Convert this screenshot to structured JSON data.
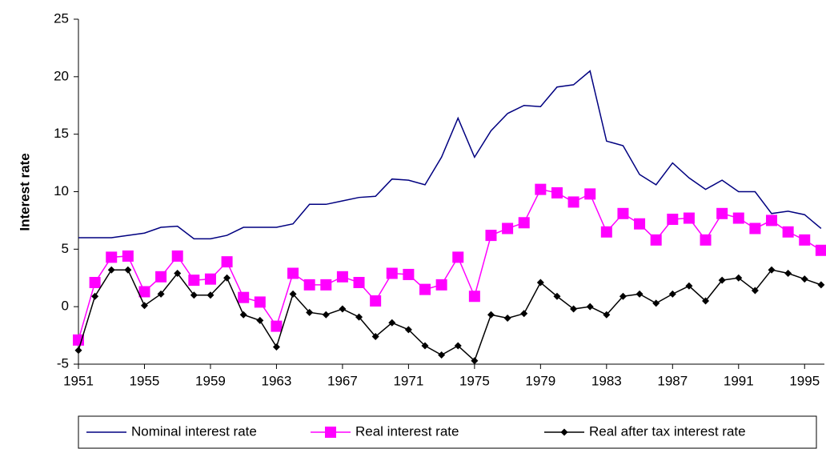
{
  "chart_data": {
    "type": "line",
    "y_label": "Interest rate",
    "x": [
      1951,
      1952,
      1953,
      1954,
      1955,
      1956,
      1957,
      1958,
      1959,
      1960,
      1961,
      1962,
      1963,
      1964,
      1965,
      1966,
      1967,
      1968,
      1969,
      1970,
      1971,
      1972,
      1973,
      1974,
      1975,
      1976,
      1977,
      1978,
      1979,
      1980,
      1981,
      1982,
      1983,
      1984,
      1985,
      1986,
      1987,
      1988,
      1989,
      1990,
      1991,
      1992,
      1993,
      1994,
      1995,
      1996
    ],
    "xlim": [
      1951,
      1996.2
    ],
    "xticks": [
      1951,
      1955,
      1959,
      1963,
      1967,
      1971,
      1975,
      1979,
      1983,
      1987,
      1991,
      1995
    ],
    "ylim": [
      -5,
      25
    ],
    "yticks": [
      -5,
      0,
      5,
      10,
      15,
      20,
      25
    ],
    "series": [
      {
        "name": "Nominal interest rate",
        "color": "#000080",
        "marker": "none",
        "values": [
          6,
          6,
          6,
          6.2,
          6.4,
          6.9,
          7.0,
          5.9,
          5.9,
          6.2,
          6.9,
          6.9,
          6.9,
          7.2,
          8.9,
          8.9,
          9.2,
          9.5,
          9.6,
          11.1,
          11.0,
          10.6,
          13.0,
          16.4,
          13.0,
          15.3,
          16.8,
          17.5,
          17.4,
          19.1,
          19.3,
          20.5,
          14.4,
          14.0,
          11.5,
          10.6,
          12.5,
          11.2,
          10.2,
          11.0,
          10.0,
          10.0,
          8.1,
          8.3,
          8.0,
          6.8
        ]
      },
      {
        "name": "Real interest rate",
        "color": "#ff00ff",
        "marker": "square",
        "values": [
          -2.9,
          2.1,
          4.3,
          4.4,
          1.3,
          2.6,
          4.4,
          2.3,
          2.4,
          3.9,
          0.8,
          0.4,
          -1.7,
          2.9,
          1.9,
          1.9,
          2.6,
          2.1,
          0.5,
          2.9,
          2.8,
          1.5,
          1.9,
          4.3,
          0.9,
          6.2,
          6.8,
          7.3,
          10.2,
          9.9,
          9.1,
          9.8,
          6.5,
          8.1,
          7.2,
          5.8,
          7.6,
          7.7,
          5.8,
          8.1,
          7.7,
          6.8,
          7.5,
          6.5,
          5.8,
          4.9
        ]
      },
      {
        "name": "Real after tax interest rate",
        "color": "#000000",
        "marker": "diamond",
        "values": [
          -3.8,
          0.9,
          3.2,
          3.2,
          0.1,
          1.1,
          2.9,
          1.0,
          1.0,
          2.5,
          -0.7,
          -1.2,
          -3.5,
          1.1,
          -0.5,
          -0.7,
          -0.2,
          -0.9,
          -2.6,
          -1.4,
          -2.0,
          -3.4,
          -4.2,
          -3.4,
          -4.7,
          -0.7,
          -1.0,
          -0.6,
          2.1,
          0.9,
          -0.2,
          0.0,
          -0.7,
          0.9,
          1.1,
          0.3,
          1.1,
          1.8,
          0.5,
          2.3,
          2.5,
          1.4,
          3.2,
          2.9,
          2.4,
          1.9
        ]
      }
    ]
  }
}
